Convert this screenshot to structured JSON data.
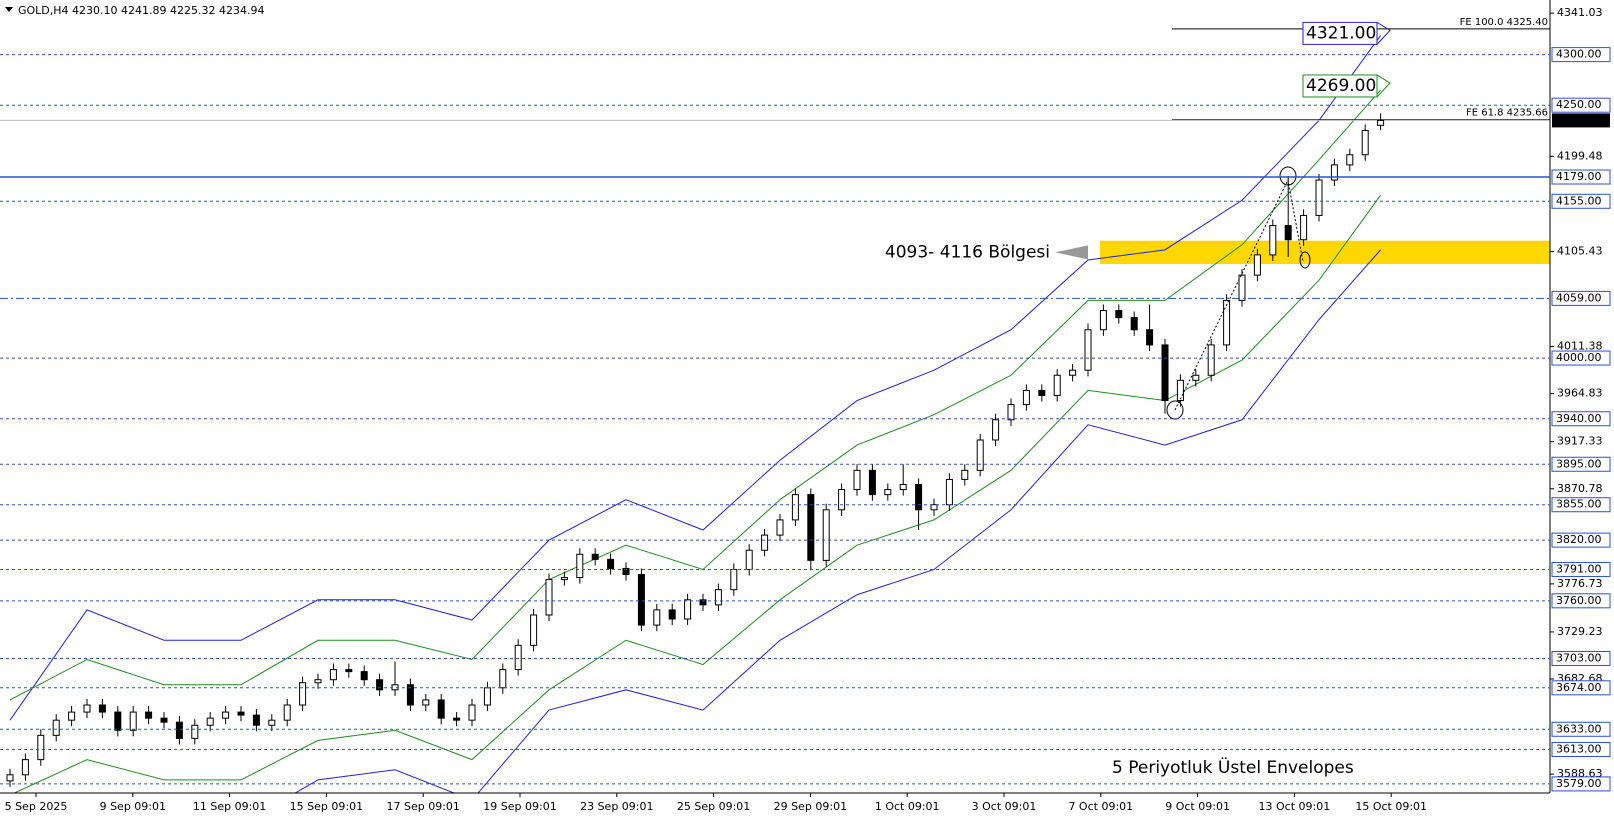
{
  "chart_data": {
    "type": "candlestick",
    "title": "GOLD,H4  4230.10 4241.89 4225.32 4234.94",
    "ylim": [
      3570,
      4354
    ],
    "yticks": [
      4341.03,
      4199.48,
      4105.43,
      {
        "value": 4011.38,
        "label": "4011.38"
      },
      3964.83,
      3917.33,
      3870.78,
      3776.73,
      3729.23,
      3682.68,
      3588.63
    ],
    "x_labels": [
      "5 Sep 2025",
      "9 Sep 09:01",
      "11 Sep 09:01",
      "15 Sep 09:01",
      "17 Sep 09:01",
      "19 Sep 09:01",
      "23 Sep 09:01",
      "25 Sep 09:01",
      "29 Sep 09:01",
      "1 Oct 09:01",
      "3 Oct 09:01",
      "7 Oct 09:01",
      "9 Oct 09:01",
      "13 Oct 09:01",
      "15 Oct 09:01"
    ],
    "open": [
      3582,
      3588,
      3603,
      3627,
      3642,
      3650,
      3657,
      3650,
      3632,
      3650,
      3644,
      3640,
      3624,
      3637,
      3644,
      3650,
      3647,
      3637,
      3642,
      3657,
      3679,
      3682,
      3692,
      3690,
      3682,
      3672,
      3677,
      3657,
      3662,
      3644,
      3642,
      3657,
      3674,
      3692,
      3716,
      3746,
      3781,
      3783,
      3806,
      3801,
      3792,
      3786,
      3736,
      3751,
      3742,
      3761,
      3756,
      3771,
      3791,
      3810,
      3825,
      3840,
      3865,
      3800,
      3850,
      3870,
      3889,
      3865,
      3870,
      3875,
      3850,
      3855,
      3880,
      3889,
      3919,
      3939,
      3954,
      3968,
      3963,
      3983,
      3988,
      4028,
      4047,
      4040,
      4028,
      4013,
      3958,
      3978,
      3983,
      4013,
      4057,
      4082,
      4102,
      4131,
      4117,
      4141,
      4176,
      4191,
      4201,
      4230.1
    ],
    "high": [
      3594,
      3609,
      3633,
      3648,
      3656,
      3663,
      3663,
      3656,
      3656,
      3656,
      3650,
      3646,
      3643,
      3650,
      3656,
      3656,
      3653,
      3648,
      3663,
      3685,
      3688,
      3698,
      3698,
      3696,
      3688,
      3700,
      3683,
      3668,
      3668,
      3650,
      3663,
      3680,
      3698,
      3722,
      3752,
      3787,
      3789,
      3812,
      3812,
      3807,
      3798,
      3792,
      3757,
      3757,
      3767,
      3767,
      3777,
      3797,
      3816,
      3831,
      3846,
      3871,
      3871,
      3856,
      3876,
      3895,
      3895,
      3876,
      3895,
      3881,
      3861,
      3886,
      3895,
      3925,
      3945,
      3960,
      3974,
      3974,
      3989,
      3994,
      4034,
      4053,
      4053,
      4046,
      4053,
      4019,
      3984,
      3989,
      4019,
      4063,
      4088,
      4108,
      4137,
      4180,
      4147,
      4182,
      4197,
      4207,
      4231,
      4241.89
    ],
    "low": [
      3576,
      3582,
      3597,
      3621,
      3636,
      3644,
      3644,
      3626,
      3626,
      3638,
      3634,
      3618,
      3618,
      3631,
      3638,
      3641,
      3631,
      3631,
      3636,
      3651,
      3673,
      3676,
      3684,
      3676,
      3666,
      3666,
      3651,
      3651,
      3638,
      3636,
      3636,
      3651,
      3668,
      3686,
      3710,
      3740,
      3775,
      3777,
      3795,
      3786,
      3780,
      3730,
      3730,
      3736,
      3736,
      3750,
      3750,
      3765,
      3785,
      3804,
      3819,
      3834,
      3790,
      3794,
      3844,
      3864,
      3859,
      3859,
      3864,
      3830,
      3844,
      3849,
      3874,
      3883,
      3913,
      3933,
      3948,
      3957,
      3957,
      3977,
      3982,
      4022,
      4034,
      4022,
      4007,
      3945,
      3952,
      3972,
      3977,
      4007,
      4051,
      4076,
      4096,
      4100,
      4111,
      4135,
      4170,
      4185,
      4195,
      4225.32
    ],
    "close": [
      3588,
      3603,
      3627,
      3642,
      3650,
      3657,
      3650,
      3632,
      3650,
      3644,
      3640,
      3624,
      3637,
      3644,
      3650,
      3647,
      3637,
      3642,
      3657,
      3679,
      3682,
      3692,
      3690,
      3682,
      3672,
      3677,
      3657,
      3662,
      3644,
      3642,
      3657,
      3674,
      3692,
      3716,
      3746,
      3781,
      3783,
      3806,
      3801,
      3792,
      3786,
      3736,
      3751,
      3742,
      3761,
      3756,
      3771,
      3791,
      3810,
      3825,
      3840,
      3865,
      3800,
      3850,
      3870,
      3889,
      3865,
      3870,
      3875,
      3850,
      3855,
      3880,
      3889,
      3919,
      3939,
      3954,
      3968,
      3963,
      3983,
      3988,
      4028,
      4047,
      4040,
      4028,
      4013,
      3958,
      3978,
      3983,
      4013,
      4057,
      4082,
      4102,
      4131,
      4117,
      4141,
      4176,
      4191,
      4201,
      4225,
      4234.94
    ],
    "envelope_x": [
      0,
      5,
      10,
      15,
      20,
      25,
      30,
      35,
      40,
      45,
      50,
      55,
      60,
      65,
      70,
      75,
      80,
      85,
      89
    ],
    "envelopes": [
      {
        "color": "#1f1fe0",
        "values": [
          3642,
          3751,
          3721,
          3721,
          3761,
          3761,
          3741,
          3820,
          3860,
          3830,
          3899,
          3958,
          3988,
          4028,
          4097,
          4107,
          4156,
          4235,
          4319
        ]
      },
      {
        "color": "#1e8c1e",
        "values": [
          3662,
          3702,
          3677,
          3677,
          3721,
          3721,
          3702,
          3781,
          3815,
          3791,
          3860,
          3914,
          3944,
          3983,
          4057,
          4057,
          4112,
          4196,
          4265
        ]
      },
      {
        "color": "#1e8c1e",
        "values": [
          3568,
          3603,
          3583,
          3583,
          3622,
          3632,
          3603,
          3672,
          3721,
          3697,
          3761,
          3815,
          3840,
          3889,
          3968,
          3958,
          3998,
          4077,
          4161
        ]
      },
      {
        "color": "#1f1fe0",
        "values": [
          3524,
          3553,
          3539,
          3539,
          3583,
          3593,
          3563,
          3652,
          3672,
          3652,
          3721,
          3766,
          3791,
          3850,
          3934,
          3914,
          3939,
          4038,
          4107
        ]
      }
    ],
    "levels": [
      {
        "value": 4300,
        "label": "4300.00",
        "style": "dashed"
      },
      {
        "value": 4250,
        "label": "4250.00",
        "style": "dashed"
      },
      {
        "value": 4179,
        "label": "4179.00",
        "style": "solid"
      },
      {
        "value": 4155,
        "label": "4155.00",
        "style": "dashed"
      },
      {
        "value": 4059,
        "label": "4059.00",
        "style": "dashdot"
      },
      {
        "value": 4000,
        "label": "4000.00",
        "style": "dashed"
      },
      {
        "value": 3940,
        "label": "3940.00",
        "style": "dashed"
      },
      {
        "value": 3895,
        "label": "3895.00",
        "style": "dashed"
      },
      {
        "value": 3855,
        "label": "3855.00",
        "style": "dashed"
      },
      {
        "value": 3820,
        "label": "3820.00",
        "style": "dashed"
      },
      {
        "value": 3791,
        "label": "3791.00",
        "style": "dashed"
      },
      {
        "value": 3760,
        "label": "3760.00",
        "style": "dashed"
      },
      {
        "value": 3703,
        "label": "3703.00",
        "style": "dashed"
      },
      {
        "value": 3674,
        "label": "3674.00",
        "style": "dashed"
      },
      {
        "value": 3633,
        "label": "3633.00",
        "style": "dashed"
      },
      {
        "value": 3613,
        "label": "3613.00",
        "style": "dashed"
      },
      {
        "value": 3579,
        "label": "3579.00",
        "style": "dashed"
      }
    ],
    "last_price": 4234.94,
    "fe_levels": [
      {
        "value": 4325.4,
        "label": "FE 100.0 4325.40"
      },
      {
        "value": 4235.66,
        "label": "FE 61.8 4235.66"
      }
    ],
    "targets": [
      {
        "value": 4321,
        "label": "4321.00",
        "color": "#1f1fe0"
      },
      {
        "value": 4269,
        "label": "4269.00",
        "color": "#1e8c1e"
      }
    ],
    "zone": {
      "low": 4093,
      "high": 4116,
      "label": "4093- 4116 Bölgesi",
      "color": "#ffd700",
      "label_color": "#ff8c00"
    },
    "footnote": "5 Periyotluk Üstel Envelopes"
  }
}
